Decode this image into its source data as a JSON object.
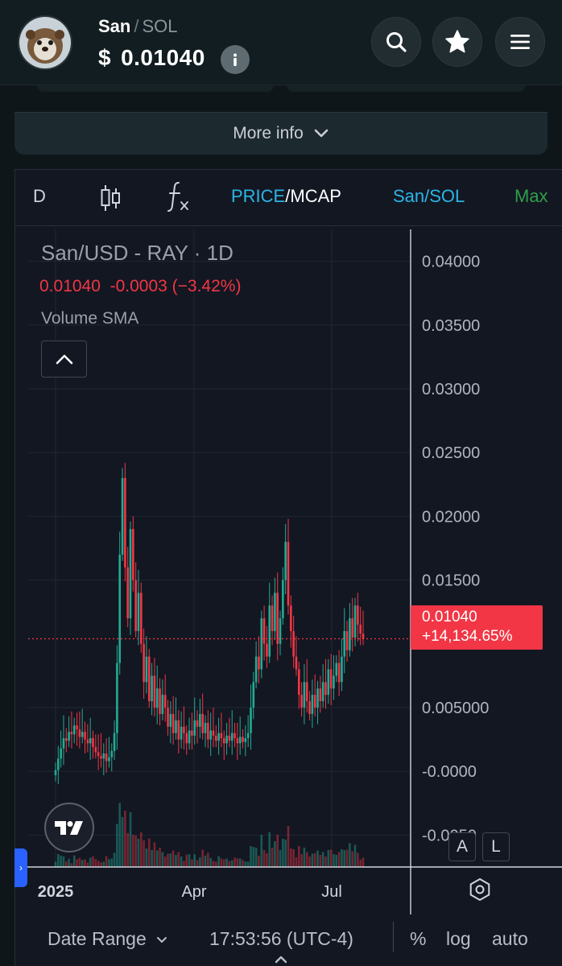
{
  "header": {
    "base_symbol": "San",
    "separator": "/",
    "quote_symbol": "SOL",
    "currency_symbol": "$",
    "price": "0.01040"
  },
  "more_info": {
    "label": "More info"
  },
  "chart_toolbar": {
    "interval": "D",
    "price_label": "PRICE",
    "slash": "/",
    "mcap_label": "MCAP",
    "pair_label": "San/SOL",
    "max_label": "Max"
  },
  "legend": {
    "title": "San/USD - RAY · 1D",
    "values": "0.01040  -0.0003 (−3.42%)",
    "indicator": "Volume SMA"
  },
  "y_axis_labels": [
    "0.04000",
    "0.03500",
    "0.03000",
    "0.02500",
    "0.02000",
    "0.01500",
    "0.005000",
    "-0.0000",
    "-0.0050"
  ],
  "x_axis_labels": [
    "2025",
    "Apr",
    "Jul"
  ],
  "last_price": {
    "value": "0.01040",
    "change": "+14,134.65%"
  },
  "scale_buttons": {
    "auto": "A",
    "log": "L"
  },
  "bottom_bar": {
    "date_range": "Date Range",
    "time": "17:53:56 (UTC-4)",
    "percent": "%",
    "log": "log",
    "auto": "auto"
  },
  "colors": {
    "up": "#22ab94",
    "down": "#f23645",
    "accent_blue": "#2bb5e6",
    "max_green": "#2e9e4a",
    "chart_bg": "#131722"
  },
  "chart_data": {
    "type": "candlestick",
    "title": "San/USD - RAY · 1D",
    "ylim": [
      -0.0075,
      0.0425
    ],
    "y_ticks": [
      0.04,
      0.035,
      0.03,
      0.025,
      0.02,
      0.015,
      0.005,
      0,
      -0.005
    ],
    "x_ticks": [
      "2025",
      "Apr",
      "Jul"
    ],
    "last_value": 0.0104,
    "close_series": [
      0.0001,
      0.001,
      0.0018,
      0.0026,
      0.0024,
      0.0031,
      0.0029,
      0.0036,
      0.0033,
      0.0027,
      0.0031,
      0.0025,
      0.0022,
      0.0026,
      0.0019,
      0.0015,
      0.0012,
      0.001,
      0.0014,
      0.0008,
      0.0011,
      0.0016,
      0.003,
      0.0085,
      0.017,
      0.023,
      0.016,
      0.012,
      0.019,
      0.015,
      0.011,
      0.014,
      0.01,
      0.007,
      0.009,
      0.0055,
      0.0075,
      0.005,
      0.0065,
      0.0045,
      0.006,
      0.005,
      0.0035,
      0.0045,
      0.003,
      0.004,
      0.0025,
      0.0035,
      0.003,
      0.0022,
      0.0032,
      0.0028,
      0.004,
      0.0035,
      0.0045,
      0.003,
      0.0038,
      0.0025,
      0.0032,
      0.0028,
      0.0024,
      0.003,
      0.0026,
      0.0022,
      0.0028,
      0.0024,
      0.003,
      0.0026,
      0.0022,
      0.0027,
      0.0023,
      0.0026,
      0.003,
      0.005,
      0.007,
      0.009,
      0.008,
      0.012,
      0.01,
      0.009,
      0.013,
      0.011,
      0.014,
      0.01,
      0.012,
      0.015,
      0.018,
      0.013,
      0.011,
      0.009,
      0.008,
      0.006,
      0.005,
      0.007,
      0.0055,
      0.0045,
      0.006,
      0.005,
      0.0065,
      0.0055,
      0.007,
      0.006,
      0.008,
      0.0065,
      0.0075,
      0.0085,
      0.007,
      0.009,
      0.011,
      0.0095,
      0.012,
      0.0105,
      0.013,
      0.0115,
      0.0108,
      0.0104
    ]
  }
}
